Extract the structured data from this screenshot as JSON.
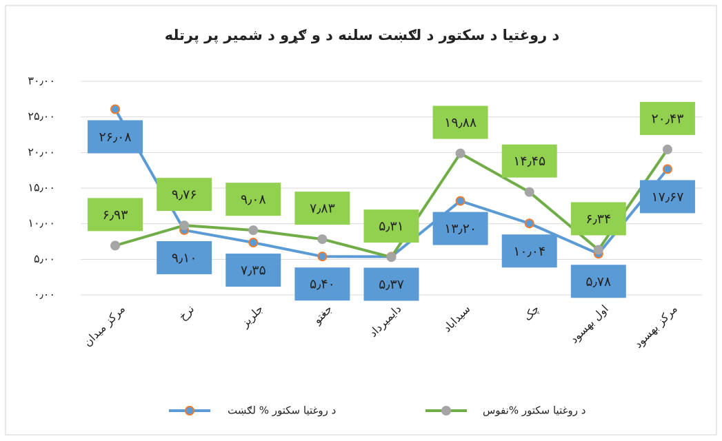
{
  "chart_data": {
    "type": "line",
    "title": "د روغتیا د سکتور د لګښت سلنه د و ګړو د شمیر پر پرتله",
    "categories": [
      "مرکز میدان",
      "نرخ",
      "جلریز",
      "جغتو",
      "دایمیرداد",
      "سیداباد",
      "چک",
      "اول بهسود",
      "مرکز بهسود"
    ],
    "series": [
      {
        "name": "د روغتیا سکتور % لګښت",
        "color": "#5b9bd5",
        "marker_color": "#ed7d31",
        "label_color": "#5b9bd5",
        "values": [
          26.08,
          9.1,
          7.35,
          5.4,
          5.37,
          13.2,
          10.04,
          5.78,
          17.67
        ],
        "value_labels": [
          "۲۶٫۰۸",
          "۹٫۱۰",
          "۷٫۳۵",
          "۵٫۴۰",
          "۵٫۳۷",
          "۱۳٫۲۰",
          "۱۰٫۰۴",
          "۵٫۷۸",
          "۱۷٫۶۷"
        ]
      },
      {
        "name": "د روغتیا سکتور %نفوس",
        "color": "#70ad47",
        "marker_color": "#a5a5a5",
        "label_color": "#92d050",
        "values": [
          6.93,
          9.76,
          9.08,
          7.83,
          5.31,
          19.88,
          14.45,
          6.34,
          20.43
        ],
        "value_labels": [
          "۶٫۹۳",
          "۹٫۷۶",
          "۹٫۰۸",
          "۷٫۸۳",
          "۵٫۳۱",
          "۱۹٫۸۸",
          "۱۴٫۴۵",
          "۶٫۳۴",
          "۲۰٫۴۳"
        ]
      }
    ],
    "ylim": [
      0,
      30
    ],
    "yticks": [
      {
        "value": 0,
        "label": "۰٫۰۰"
      },
      {
        "value": 5,
        "label": "۵٫۰۰"
      },
      {
        "value": 10,
        "label": "۱۰٫۰۰"
      },
      {
        "value": 15,
        "label": "۱۵٫۰۰"
      },
      {
        "value": 20,
        "label": "۲۰٫۰۰"
      },
      {
        "value": 25,
        "label": "۲۵٫۰۰"
      },
      {
        "value": 30,
        "label": "۳۰٫۰۰"
      }
    ],
    "grid": true,
    "legend": "bottom"
  }
}
